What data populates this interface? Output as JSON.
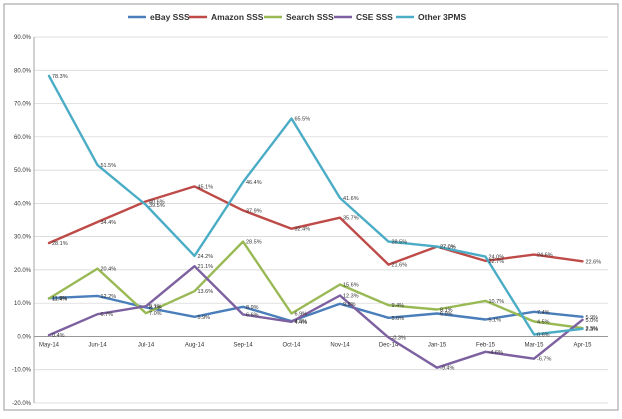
{
  "chart_data": {
    "type": "line",
    "title": "",
    "xlabel": "",
    "ylabel": "",
    "x": [
      "May-14",
      "Jun-14",
      "Jul-14",
      "Aug-14",
      "Sep-14",
      "Oct-14",
      "Nov-14",
      "Dec-14",
      "Jan-15",
      "Feb-15",
      "Mar-15",
      "Apr-15"
    ],
    "ylim": [
      -20,
      90
    ],
    "yticks": [
      "-20.0%",
      "-10.0%",
      "0.0%",
      "10.0%",
      "20.0%",
      "30.0%",
      "40.0%",
      "50.0%",
      "60.0%",
      "70.0%",
      "80.0%",
      "90.0%"
    ],
    "grid": true,
    "legend_position": "top",
    "series": [
      {
        "name": "eBay SSS",
        "color": "#4a7ebb",
        "values": [
          11.5,
          12.2,
          8.7,
          5.9,
          8.9,
          4.6,
          9.8,
          5.6,
          6.9,
          5.1,
          7.4,
          5.9
        ],
        "labels": [
          "11.5%",
          "12.2%",
          "8.7%",
          "5.9%",
          "8.9%",
          "4.6%",
          "9.8%",
          "5.6%",
          "6.9%",
          "5.1%",
          "7.4%",
          "5.9%"
        ]
      },
      {
        "name": "Amazon SSS",
        "color": "#be4b48",
        "values": [
          28.1,
          34.4,
          40.6,
          45.1,
          37.9,
          32.4,
          35.7,
          21.6,
          27.0,
          22.7,
          24.6,
          22.6
        ],
        "labels": [
          "28.1%",
          "34.4%",
          "40.6%",
          "45.1%",
          "37.9%",
          "32.4%",
          "35.7%",
          "21.6%",
          "27.0%",
          "22.7%",
          "24.6%",
          "22.6%"
        ]
      },
      {
        "name": "Search SSS",
        "color": "#98b954",
        "values": [
          11.4,
          20.4,
          7.0,
          13.6,
          28.5,
          6.9,
          15.6,
          9.4,
          8.1,
          10.7,
          4.5,
          2.5
        ],
        "labels": [
          "11.4%",
          "20.4%",
          "7.0%",
          "13.6%",
          "28.5%",
          "6.9%",
          "15.6%",
          "9.4%",
          "8.1%",
          "10.7%",
          "4.5%",
          "2.5%"
        ]
      },
      {
        "name": "CSE SSS",
        "color": "#7d60a0",
        "values": [
          0.4,
          6.7,
          9.1,
          21.1,
          6.6,
          4.4,
          12.3,
          -0.3,
          -9.4,
          -4.6,
          -6.7,
          5.0
        ],
        "labels": [
          "0.4%",
          "6.7%",
          "9.1%",
          "21.1%",
          "6.6%",
          "4.4%",
          "12.3%",
          "-0.3%",
          "-9.4%",
          "-4.6%",
          "-6.7%",
          "5.0%"
        ]
      },
      {
        "name": "Other 3PMS",
        "color": "#4bacc6",
        "values": [
          78.3,
          51.5,
          39.5,
          24.2,
          46.4,
          65.5,
          41.6,
          28.5,
          27.0,
          24.0,
          0.6,
          2.3
        ],
        "labels": [
          "78.3%",
          "51.5%",
          "39.5%",
          "24.2%",
          "46.4%",
          "65.5%",
          "41.6%",
          "28.5%",
          "27.0%",
          "24.0%",
          "0.6%",
          "2.3%"
        ]
      }
    ]
  }
}
